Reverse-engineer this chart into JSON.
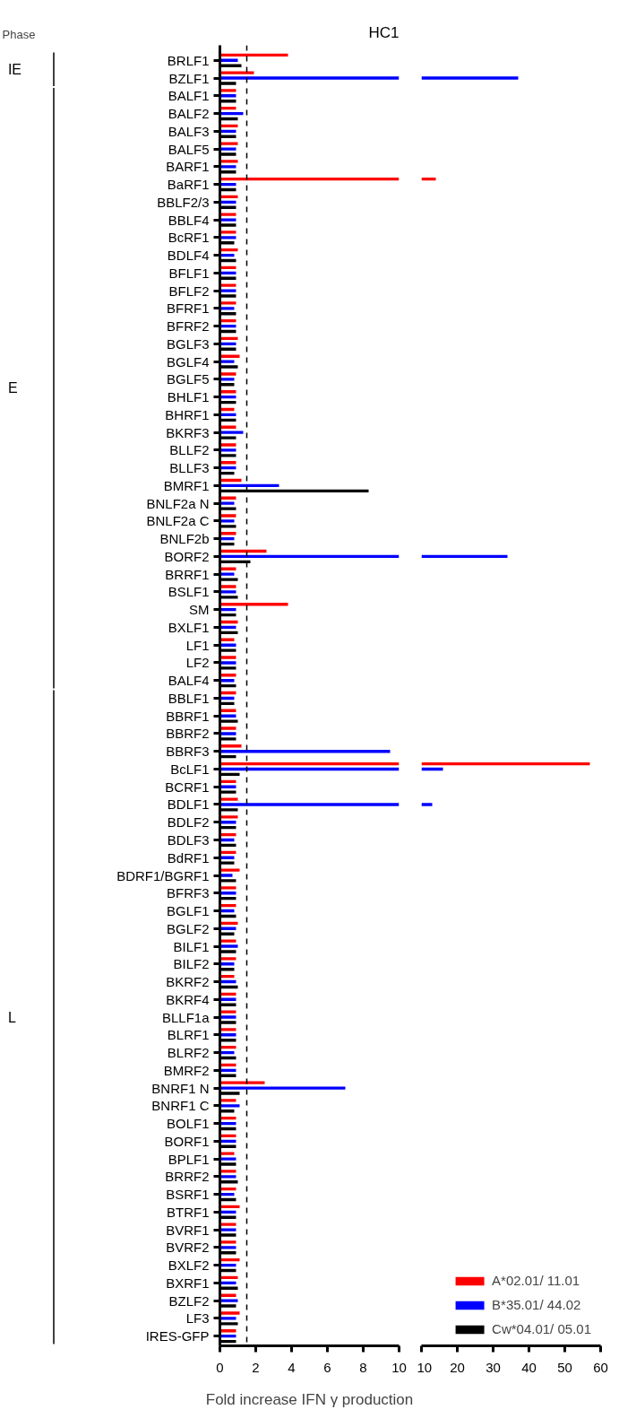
{
  "chart_data": [
    {
      "type": "bar",
      "orientation": "horizontal",
      "title": "HC1",
      "xlabel": "Fold increase IFN γ production",
      "annotations": [
        "Phase",
        "IE",
        "E",
        "L"
      ],
      "categories": [
        "BRLF1",
        "BZLF1",
        "BALF1",
        "BALF2",
        "BALF3",
        "BALF5",
        "BARF1",
        "BaRF1",
        "BBLF2/3",
        "BBLF4",
        "BcRF1",
        "BDLF4",
        "BFLF1",
        "BFLF2",
        "BFRF1",
        "BFRF2",
        "BGLF3",
        "BGLF4",
        "BGLF5",
        "BHLF1",
        "BHRF1",
        "BKRF3",
        "BLLF2",
        "BLLF3",
        "BMRF1",
        "BNLF2a N",
        "BNLF2a C",
        "BNLF2b",
        "BORF2",
        "BRRF1",
        "BSLF1",
        "SM",
        "BXLF1",
        "LF1",
        "LF2",
        "BALF4",
        "BBLF1",
        "BBRF1",
        "BBRF2",
        "BBRF3",
        "BcLF1",
        "BCRF1",
        "BDLF1",
        "BDLF2",
        "BDLF3",
        "BdRF1",
        "BDRF1/BGRF1",
        "BFRF3",
        "BGLF1",
        "BGLF2",
        "BILF1",
        "BILF2",
        "BKRF2",
        "BKRF4",
        "BLLF1a",
        "BLRF1",
        "BLRF2",
        "BMRF2",
        "BNRF1 N",
        "BNRF1 C",
        "BOLF1",
        "BORF1",
        "BPLF1",
        "BRRF2",
        "BSRF1",
        "BTRF1",
        "BVRF1",
        "BVRF2",
        "BXLF2",
        "BXRF1",
        "BZLF2",
        "LF3",
        "IRES-GFP"
      ],
      "series": [
        {
          "color": "#ff0000",
          "values": [
            3.8,
            1.9,
            0.9,
            0.9,
            1.0,
            1.0,
            1.0,
            10,
            1.0,
            0.9,
            0.9,
            1.0,
            0.9,
            0.9,
            0.9,
            0.9,
            1.0,
            1.1,
            0.9,
            0.9,
            0.8,
            0.9,
            0.9,
            0.9,
            1.2,
            0.9,
            0.9,
            0.9,
            2.6,
            0.9,
            0.9,
            3.8,
            1.0,
            0.8,
            0.9,
            0.9,
            0.9,
            0.9,
            0.9,
            1.2,
            10,
            0.9,
            1.0,
            1.0,
            0.9,
            0.9,
            1.1,
            0.9,
            0.9,
            1.0,
            0.9,
            0.9,
            0.8,
            0.9,
            0.9,
            0.9,
            0.9,
            0.9,
            2.5,
            0.9,
            0.9,
            0.9,
            0.8,
            0.9,
            0.9,
            1.1,
            0.9,
            0.9,
            1.1,
            1.0,
            0.9,
            1.1,
            0.9
          ]
        },
        {
          "color": "#0000ff",
          "values": [
            1.0,
            10,
            0.9,
            1.3,
            0.9,
            0.9,
            0.9,
            0.9,
            0.9,
            0.9,
            0.9,
            0.8,
            0.9,
            0.9,
            0.8,
            0.9,
            0.9,
            0.8,
            0.8,
            0.9,
            0.9,
            1.3,
            0.9,
            0.9,
            3.3,
            0.8,
            0.8,
            0.8,
            10,
            0.8,
            0.9,
            0.9,
            0.9,
            0.9,
            0.9,
            0.8,
            0.8,
            0.9,
            0.9,
            9.5,
            10,
            0.9,
            10,
            0.9,
            0.8,
            0.8,
            0.7,
            0.9,
            0.8,
            0.9,
            1.0,
            0.8,
            0.9,
            0.9,
            0.9,
            0.9,
            0.8,
            0.9,
            7.0,
            1.1,
            0.9,
            0.9,
            0.9,
            0.9,
            0.8,
            0.9,
            0.9,
            0.9,
            0.9,
            0.9,
            1.0,
            0.9,
            0.9
          ]
        },
        {
          "color": "#000000",
          "values": [
            1.2,
            0.9,
            0.9,
            1.0,
            0.9,
            0.9,
            0.9,
            0.9,
            0.9,
            0.9,
            0.8,
            0.9,
            0.9,
            0.9,
            0.9,
            0.9,
            0.9,
            1.0,
            0.8,
            0.9,
            0.9,
            0.9,
            0.9,
            0.8,
            8.3,
            0.9,
            0.9,
            0.8,
            1.7,
            1.0,
            1.0,
            0.9,
            1.0,
            0.9,
            0.9,
            0.9,
            0.8,
            1.0,
            0.9,
            0.9,
            1.1,
            0.9,
            1.0,
            0.9,
            0.9,
            0.8,
            0.9,
            0.9,
            0.9,
            0.8,
            0.9,
            0.8,
            1.0,
            0.9,
            0.9,
            0.9,
            0.9,
            0.9,
            1.1,
            0.8,
            0.9,
            0.9,
            0.9,
            1.0,
            0.9,
            0.9,
            0.9,
            0.9,
            0.9,
            1.0,
            0.9,
            1.0,
            0.9
          ]
        }
      ],
      "xlim": [
        0,
        10
      ],
      "xticks": [
        0,
        2,
        4,
        6,
        8,
        10
      ],
      "ref_lines": [
        {
          "axis": "x",
          "value": 1.5,
          "line_style": "dashed",
          "color": "#000000"
        }
      ],
      "grid": false,
      "legend": false
    },
    {
      "type": "bar",
      "orientation": "horizontal",
      "tick_labels": "x",
      "series": [
        {
          "name": "A*02.01/ 11.01",
          "color": "#ff0000",
          "values": [
            null,
            null,
            null,
            null,
            null,
            null,
            null,
            14,
            null,
            null,
            null,
            null,
            null,
            null,
            null,
            null,
            null,
            null,
            null,
            null,
            null,
            null,
            null,
            null,
            null,
            null,
            null,
            null,
            null,
            null,
            null,
            null,
            null,
            null,
            null,
            null,
            null,
            null,
            null,
            null,
            57,
            null,
            null,
            null,
            null,
            null,
            null,
            null,
            null,
            null,
            null,
            null,
            null,
            null,
            null,
            null,
            null,
            null,
            null,
            null,
            null,
            null,
            null,
            null,
            null,
            null,
            null,
            null,
            null,
            null,
            null,
            null,
            null
          ]
        },
        {
          "name": "B*35.01/ 44.02",
          "color": "#0000ff",
          "values": [
            null,
            37,
            null,
            null,
            null,
            null,
            null,
            null,
            null,
            null,
            null,
            null,
            null,
            null,
            null,
            null,
            null,
            null,
            null,
            null,
            null,
            null,
            null,
            null,
            null,
            null,
            null,
            null,
            34,
            null,
            null,
            null,
            null,
            null,
            null,
            null,
            null,
            null,
            null,
            null,
            16,
            null,
            13,
            null,
            null,
            null,
            null,
            null,
            null,
            null,
            null,
            null,
            null,
            null,
            null,
            null,
            null,
            null,
            null,
            null,
            null,
            null,
            null,
            null,
            null,
            null,
            null,
            null,
            null,
            null,
            null,
            null,
            null
          ]
        },
        {
          "name": "Cw*04.01/ 05.01",
          "color": "#000000",
          "values": [
            null,
            null,
            null,
            null,
            null,
            null,
            null,
            null,
            null,
            null,
            null,
            null,
            null,
            null,
            null,
            null,
            null,
            null,
            null,
            null,
            null,
            null,
            null,
            null,
            null,
            null,
            null,
            null,
            null,
            null,
            null,
            null,
            null,
            null,
            null,
            null,
            null,
            null,
            null,
            null,
            null,
            null,
            null,
            null,
            null,
            null,
            null,
            null,
            null,
            null,
            null,
            null,
            null,
            null,
            null,
            null,
            null,
            null,
            null,
            null,
            null,
            null,
            null,
            null,
            null,
            null,
            null,
            null,
            null,
            null,
            null,
            null,
            null
          ]
        }
      ],
      "xlim": [
        10,
        60
      ],
      "xticks": [
        10,
        20,
        30,
        40,
        50,
        60
      ],
      "grid": false,
      "legend": "bottom right"
    }
  ]
}
